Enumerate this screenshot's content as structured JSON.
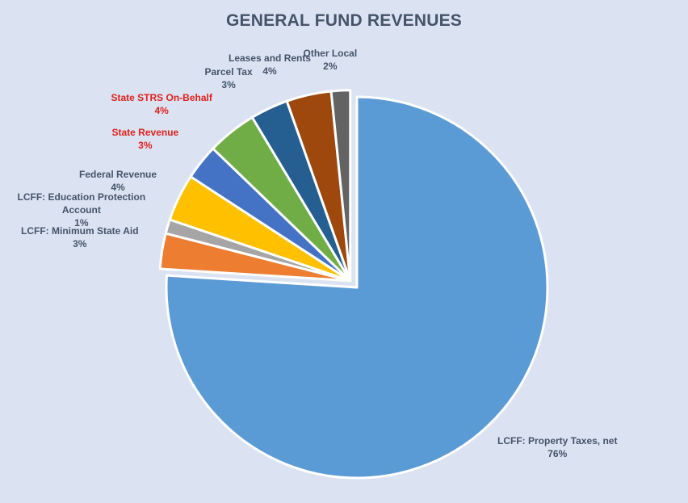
{
  "title": "GENERAL FUND REVENUES",
  "chart_data": {
    "type": "pie",
    "title": "GENERAL FUND REVENUES",
    "start_angle_deg": 0,
    "direction": "clockwise",
    "slices": [
      {
        "name": "LCFF: Property Taxes, net",
        "label": "LCFF: Property Taxes, net",
        "percent_label": "76%",
        "value": 76,
        "color": "#5b9bd5",
        "exploded": false,
        "label_color": "#44546a"
      },
      {
        "name": "LCFF: Minimum State Aid",
        "label": "LCFF: Minimum State Aid",
        "percent_label": "3%",
        "value": 3,
        "color": "#ed7d31",
        "exploded": true,
        "label_color": "#44546a"
      },
      {
        "name": "LCFF: Education Protection Account",
        "label": "LCFF: Education Protection\nAccount",
        "percent_label": "1%",
        "value": 1.2,
        "color": "#a5a5a5",
        "exploded": true,
        "label_color": "#44546a"
      },
      {
        "name": "Federal Revenue",
        "label": "Federal Revenue",
        "percent_label": "4%",
        "value": 4,
        "color": "#ffc000",
        "exploded": true,
        "label_color": "#44546a"
      },
      {
        "name": "State Revenue",
        "label": "State Revenue",
        "percent_label": "3%",
        "value": 3,
        "color": "#4472c4",
        "exploded": true,
        "label_color": "#e0201b"
      },
      {
        "name": "State STRS On-Behalf",
        "label": "State STRS On-Behalf",
        "percent_label": "4%",
        "value": 4.2,
        "color": "#70ad47",
        "exploded": true,
        "label_color": "#e0201b"
      },
      {
        "name": "Parcel Tax",
        "label": "Parcel Tax",
        "percent_label": "3%",
        "value": 3.2,
        "color": "#255e91",
        "exploded": true,
        "label_color": "#44546a"
      },
      {
        "name": "Leases and Rents",
        "label": "Leases and Rents",
        "percent_label": "4%",
        "value": 3.8,
        "color": "#9e480e",
        "exploded": true,
        "label_color": "#44546a"
      },
      {
        "name": "Other Local",
        "label": "Other Local",
        "percent_label": "2%",
        "value": 1.6,
        "color": "#636363",
        "exploded": true,
        "label_color": "#44546a"
      }
    ]
  }
}
